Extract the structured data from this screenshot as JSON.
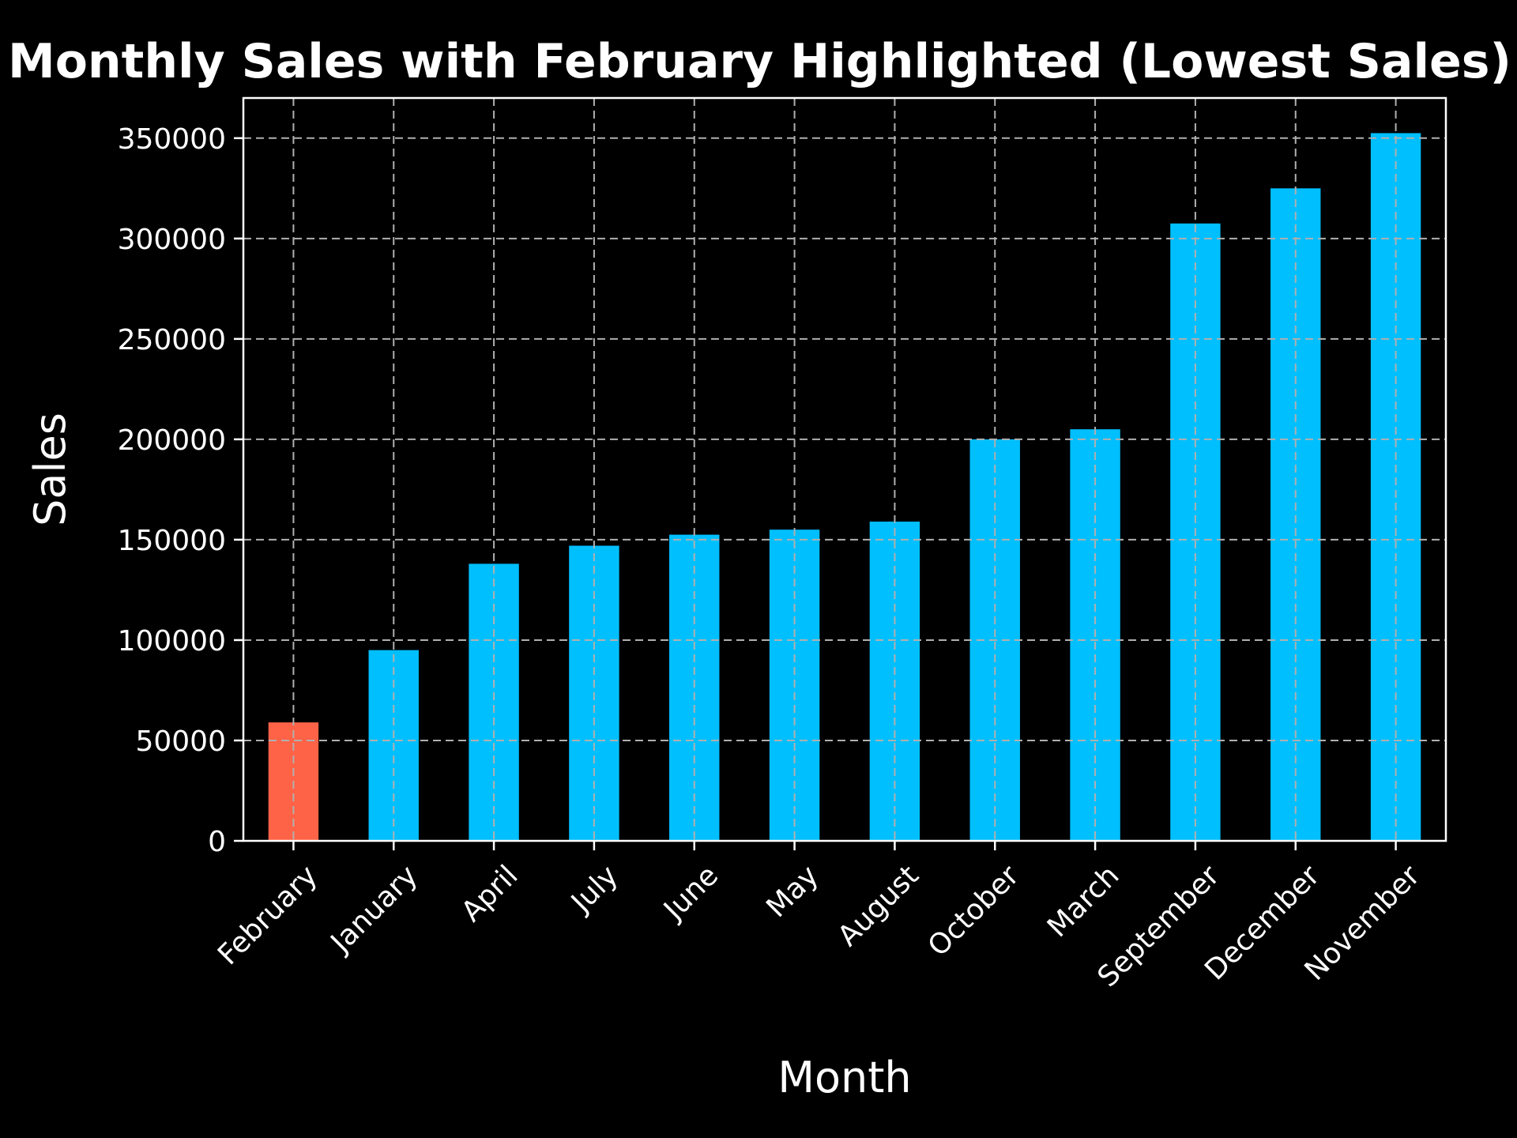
{
  "chart_data": {
    "type": "bar",
    "title": "Monthly Sales with February Highlighted (Lowest Sales)",
    "xlabel": "Month",
    "ylabel": "Sales",
    "categories": [
      "February",
      "January",
      "April",
      "July",
      "June",
      "May",
      "August",
      "October",
      "March",
      "September",
      "December",
      "November"
    ],
    "values": [
      59000,
      95000,
      138000,
      147000,
      152500,
      155000,
      159000,
      200000,
      205000,
      307500,
      325000,
      352500
    ],
    "ylim": [
      0,
      370000
    ],
    "yticks": [
      0,
      50000,
      100000,
      150000,
      200000,
      250000,
      300000,
      350000
    ],
    "grid": true,
    "highlight": {
      "category": "February",
      "color": "#ff6347"
    },
    "bar_color": "#00bfff",
    "background_color": "#000000",
    "text_color": "#ffffff"
  }
}
